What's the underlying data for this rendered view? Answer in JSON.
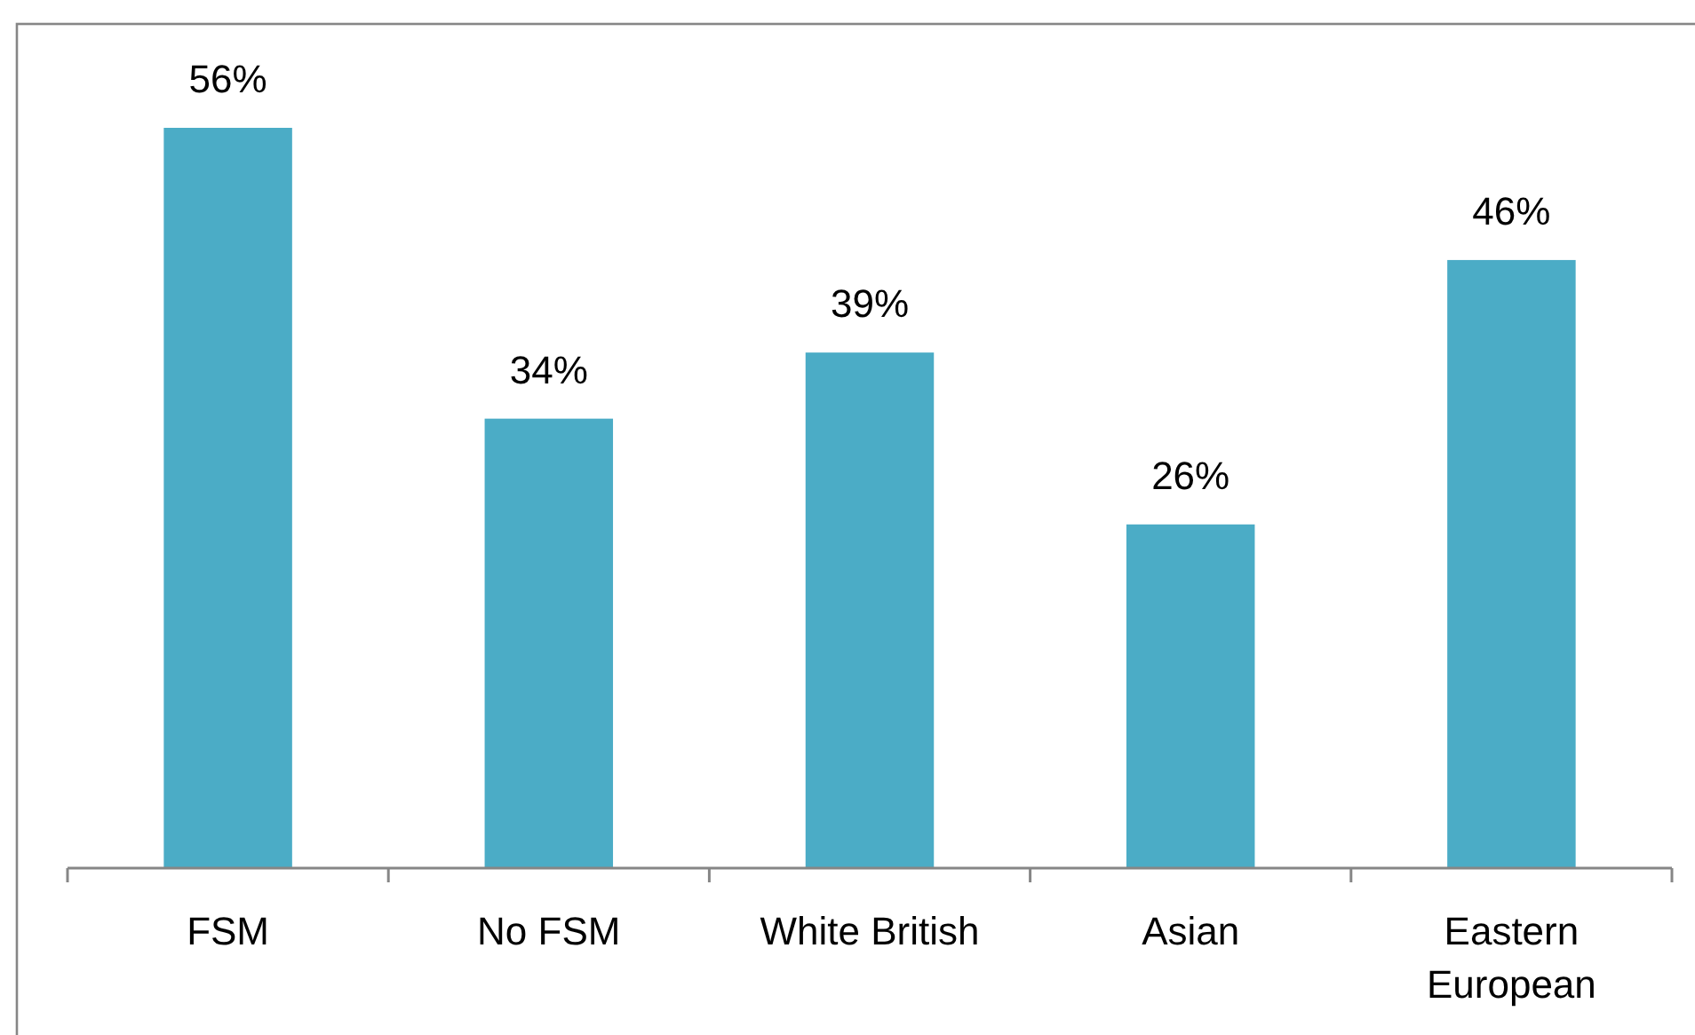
{
  "chart_data": {
    "type": "bar",
    "categories": [
      "FSM",
      "No FSM",
      "White British",
      "Asian",
      "Eastern European"
    ],
    "values": [
      56,
      34,
      39,
      26,
      46
    ],
    "value_labels": [
      "56%",
      "34%",
      "39%",
      "26%",
      "46%"
    ],
    "color": "#4bacc6"
  }
}
